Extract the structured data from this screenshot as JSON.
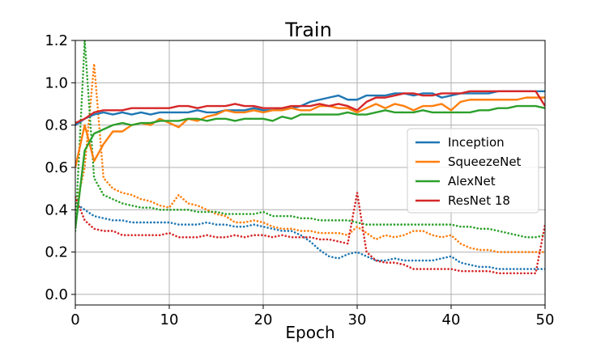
{
  "chart_data": {
    "type": "line",
    "title": "Train",
    "xlabel": "Epoch",
    "ylabel": "",
    "xlim": [
      0,
      50
    ],
    "ylim": [
      -0.05,
      1.2
    ],
    "x_ticks": [
      0,
      10,
      20,
      30,
      40,
      50
    ],
    "y_ticks": [
      0.0,
      0.2,
      0.4,
      0.6,
      0.8,
      1.0,
      1.2
    ],
    "x_tick_labels": [
      "0",
      "10",
      "20",
      "30",
      "40",
      "50"
    ],
    "y_tick_labels": [
      "0.0",
      "0.2",
      "0.4",
      "0.6",
      "0.8",
      "1.0",
      "1.2"
    ],
    "grid": true,
    "legend_position": "center-right",
    "legend": [
      {
        "name": "Inception",
        "color": "#1f77b4"
      },
      {
        "name": "SqueezeNet",
        "color": "#ff7f0e"
      },
      {
        "name": "AlexNet",
        "color": "#2ca02c"
      },
      {
        "name": "ResNet 18",
        "color": "#d62728"
      }
    ],
    "series": [
      {
        "name": "Inception",
        "metric": "accuracy",
        "style": "solid",
        "color": "#1f77b4",
        "x": [
          0,
          1,
          2,
          3,
          4,
          5,
          6,
          7,
          8,
          9,
          10,
          11,
          12,
          13,
          14,
          15,
          16,
          17,
          18,
          19,
          20,
          21,
          22,
          23,
          24,
          25,
          26,
          27,
          28,
          29,
          30,
          31,
          32,
          33,
          34,
          35,
          36,
          37,
          38,
          39,
          40,
          41,
          42,
          43,
          44,
          45,
          46,
          47,
          48,
          49,
          50
        ],
        "values": [
          0.8,
          0.83,
          0.85,
          0.86,
          0.85,
          0.86,
          0.85,
          0.86,
          0.85,
          0.86,
          0.86,
          0.86,
          0.86,
          0.87,
          0.86,
          0.86,
          0.87,
          0.87,
          0.87,
          0.88,
          0.87,
          0.87,
          0.88,
          0.88,
          0.89,
          0.91,
          0.92,
          0.93,
          0.94,
          0.92,
          0.92,
          0.94,
          0.94,
          0.94,
          0.95,
          0.95,
          0.94,
          0.95,
          0.95,
          0.93,
          0.94,
          0.95,
          0.95,
          0.95,
          0.95,
          0.96,
          0.96,
          0.96,
          0.96,
          0.96,
          0.96
        ]
      },
      {
        "name": "SqueezeNet",
        "metric": "accuracy",
        "style": "solid",
        "color": "#ff7f0e",
        "x": [
          0,
          1,
          2,
          3,
          4,
          5,
          6,
          7,
          8,
          9,
          10,
          11,
          12,
          13,
          14,
          15,
          16,
          17,
          18,
          19,
          20,
          21,
          22,
          23,
          24,
          25,
          26,
          27,
          28,
          29,
          30,
          31,
          32,
          33,
          34,
          35,
          36,
          37,
          38,
          39,
          40,
          41,
          42,
          43,
          44,
          45,
          46,
          47,
          48,
          49,
          50
        ],
        "values": [
          0.6,
          0.8,
          0.63,
          0.71,
          0.77,
          0.77,
          0.8,
          0.81,
          0.8,
          0.83,
          0.81,
          0.79,
          0.83,
          0.82,
          0.84,
          0.85,
          0.87,
          0.86,
          0.86,
          0.87,
          0.86,
          0.87,
          0.87,
          0.88,
          0.87,
          0.87,
          0.89,
          0.89,
          0.88,
          0.88,
          0.86,
          0.88,
          0.9,
          0.88,
          0.9,
          0.89,
          0.87,
          0.89,
          0.89,
          0.9,
          0.87,
          0.91,
          0.92,
          0.92,
          0.92,
          0.92,
          0.92,
          0.92,
          0.93,
          0.93,
          0.93
        ]
      },
      {
        "name": "AlexNet",
        "metric": "accuracy",
        "style": "solid",
        "color": "#2ca02c",
        "x": [
          0,
          1,
          2,
          3,
          4,
          5,
          6,
          7,
          8,
          9,
          10,
          11,
          12,
          13,
          14,
          15,
          16,
          17,
          18,
          19,
          20,
          21,
          22,
          23,
          24,
          25,
          26,
          27,
          28,
          29,
          30,
          31,
          32,
          33,
          34,
          35,
          36,
          37,
          38,
          39,
          40,
          41,
          42,
          43,
          44,
          45,
          46,
          47,
          48,
          49,
          50
        ],
        "values": [
          0.31,
          0.68,
          0.76,
          0.78,
          0.8,
          0.81,
          0.8,
          0.81,
          0.81,
          0.82,
          0.82,
          0.82,
          0.83,
          0.83,
          0.82,
          0.83,
          0.83,
          0.82,
          0.83,
          0.83,
          0.83,
          0.82,
          0.84,
          0.83,
          0.85,
          0.85,
          0.85,
          0.85,
          0.85,
          0.86,
          0.85,
          0.85,
          0.86,
          0.87,
          0.86,
          0.86,
          0.86,
          0.87,
          0.86,
          0.86,
          0.86,
          0.86,
          0.86,
          0.87,
          0.87,
          0.88,
          0.88,
          0.89,
          0.89,
          0.89,
          0.88
        ]
      },
      {
        "name": "ResNet 18",
        "metric": "accuracy",
        "style": "solid",
        "color": "#d62728",
        "x": [
          0,
          1,
          2,
          3,
          4,
          5,
          6,
          7,
          8,
          9,
          10,
          11,
          12,
          13,
          14,
          15,
          16,
          17,
          18,
          19,
          20,
          21,
          22,
          23,
          24,
          25,
          26,
          27,
          28,
          29,
          30,
          31,
          32,
          33,
          34,
          35,
          36,
          37,
          38,
          39,
          40,
          41,
          42,
          43,
          44,
          45,
          46,
          47,
          48,
          49,
          50
        ],
        "values": [
          0.81,
          0.83,
          0.86,
          0.87,
          0.87,
          0.87,
          0.88,
          0.88,
          0.88,
          0.88,
          0.88,
          0.89,
          0.89,
          0.88,
          0.89,
          0.89,
          0.89,
          0.9,
          0.89,
          0.89,
          0.88,
          0.88,
          0.88,
          0.89,
          0.89,
          0.89,
          0.9,
          0.89,
          0.9,
          0.89,
          0.87,
          0.91,
          0.93,
          0.93,
          0.94,
          0.95,
          0.95,
          0.94,
          0.94,
          0.95,
          0.95,
          0.95,
          0.96,
          0.96,
          0.96,
          0.96,
          0.96,
          0.96,
          0.96,
          0.96,
          0.89
        ]
      },
      {
        "name": "Inception",
        "metric": "loss",
        "style": "dotted",
        "color": "#1f77b4",
        "x": [
          0,
          1,
          2,
          3,
          4,
          5,
          6,
          7,
          8,
          9,
          10,
          11,
          12,
          13,
          14,
          15,
          16,
          17,
          18,
          19,
          20,
          21,
          22,
          23,
          24,
          25,
          26,
          27,
          28,
          29,
          30,
          31,
          32,
          33,
          34,
          35,
          36,
          37,
          38,
          39,
          40,
          41,
          42,
          43,
          44,
          45,
          46,
          47,
          48,
          49,
          50
        ],
        "values": [
          0.43,
          0.4,
          0.37,
          0.36,
          0.35,
          0.35,
          0.34,
          0.34,
          0.34,
          0.34,
          0.34,
          0.33,
          0.33,
          0.33,
          0.34,
          0.33,
          0.33,
          0.32,
          0.32,
          0.33,
          0.32,
          0.31,
          0.3,
          0.3,
          0.28,
          0.25,
          0.21,
          0.18,
          0.17,
          0.19,
          0.2,
          0.18,
          0.16,
          0.16,
          0.17,
          0.16,
          0.16,
          0.16,
          0.16,
          0.17,
          0.18,
          0.15,
          0.14,
          0.13,
          0.13,
          0.12,
          0.12,
          0.12,
          0.12,
          0.12,
          0.12
        ]
      },
      {
        "name": "SqueezeNet",
        "metric": "loss",
        "style": "dotted",
        "color": "#ff7f0e",
        "x": [
          0,
          1,
          2,
          3,
          4,
          5,
          6,
          7,
          8,
          9,
          10,
          11,
          12,
          13,
          14,
          15,
          16,
          17,
          18,
          19,
          20,
          21,
          22,
          23,
          24,
          25,
          26,
          27,
          28,
          29,
          30,
          31,
          32,
          33,
          34,
          35,
          36,
          37,
          38,
          39,
          40,
          41,
          42,
          43,
          44,
          45,
          46,
          47,
          48,
          49,
          50
        ],
        "values": [
          0.4,
          0.6,
          1.09,
          0.55,
          0.5,
          0.48,
          0.47,
          0.45,
          0.44,
          0.42,
          0.41,
          0.47,
          0.43,
          0.42,
          0.4,
          0.38,
          0.37,
          0.34,
          0.34,
          0.35,
          0.34,
          0.32,
          0.31,
          0.31,
          0.3,
          0.3,
          0.29,
          0.29,
          0.29,
          0.28,
          0.32,
          0.29,
          0.26,
          0.28,
          0.27,
          0.28,
          0.3,
          0.3,
          0.28,
          0.27,
          0.28,
          0.24,
          0.22,
          0.21,
          0.21,
          0.2,
          0.2,
          0.2,
          0.2,
          0.2,
          0.2
        ]
      },
      {
        "name": "AlexNet",
        "metric": "loss",
        "style": "dotted",
        "color": "#2ca02c",
        "x": [
          0,
          1,
          2,
          3,
          4,
          5,
          6,
          7,
          8,
          9,
          10,
          11,
          12,
          13,
          14,
          15,
          16,
          17,
          18,
          19,
          20,
          21,
          22,
          23,
          24,
          25,
          26,
          27,
          28,
          29,
          30,
          31,
          32,
          33,
          34,
          35,
          36,
          37,
          38,
          39,
          40,
          41,
          42,
          43,
          44,
          45,
          46,
          47,
          48,
          49,
          50
        ],
        "values": [
          0.3,
          1.2,
          0.55,
          0.47,
          0.45,
          0.43,
          0.42,
          0.41,
          0.41,
          0.4,
          0.4,
          0.4,
          0.4,
          0.39,
          0.39,
          0.39,
          0.38,
          0.38,
          0.38,
          0.38,
          0.39,
          0.37,
          0.37,
          0.37,
          0.36,
          0.36,
          0.35,
          0.35,
          0.35,
          0.35,
          0.34,
          0.33,
          0.33,
          0.33,
          0.33,
          0.33,
          0.33,
          0.33,
          0.33,
          0.33,
          0.33,
          0.32,
          0.32,
          0.31,
          0.31,
          0.3,
          0.29,
          0.28,
          0.27,
          0.27,
          0.28
        ]
      },
      {
        "name": "ResNet 18",
        "metric": "loss",
        "style": "dotted",
        "color": "#d62728",
        "x": [
          0,
          1,
          2,
          3,
          4,
          5,
          6,
          7,
          8,
          9,
          10,
          11,
          12,
          13,
          14,
          15,
          16,
          17,
          18,
          19,
          20,
          21,
          22,
          23,
          24,
          25,
          26,
          27,
          28,
          29,
          30,
          31,
          32,
          33,
          34,
          35,
          36,
          37,
          38,
          39,
          40,
          41,
          42,
          43,
          44,
          45,
          46,
          47,
          48,
          49,
          50
        ],
        "values": [
          0.46,
          0.35,
          0.31,
          0.3,
          0.3,
          0.28,
          0.28,
          0.28,
          0.28,
          0.28,
          0.29,
          0.27,
          0.27,
          0.27,
          0.28,
          0.27,
          0.27,
          0.28,
          0.27,
          0.28,
          0.28,
          0.27,
          0.28,
          0.27,
          0.27,
          0.27,
          0.26,
          0.26,
          0.25,
          0.24,
          0.48,
          0.2,
          0.16,
          0.15,
          0.15,
          0.14,
          0.12,
          0.12,
          0.12,
          0.12,
          0.12,
          0.11,
          0.11,
          0.11,
          0.11,
          0.1,
          0.1,
          0.1,
          0.1,
          0.1,
          0.33
        ]
      }
    ]
  }
}
